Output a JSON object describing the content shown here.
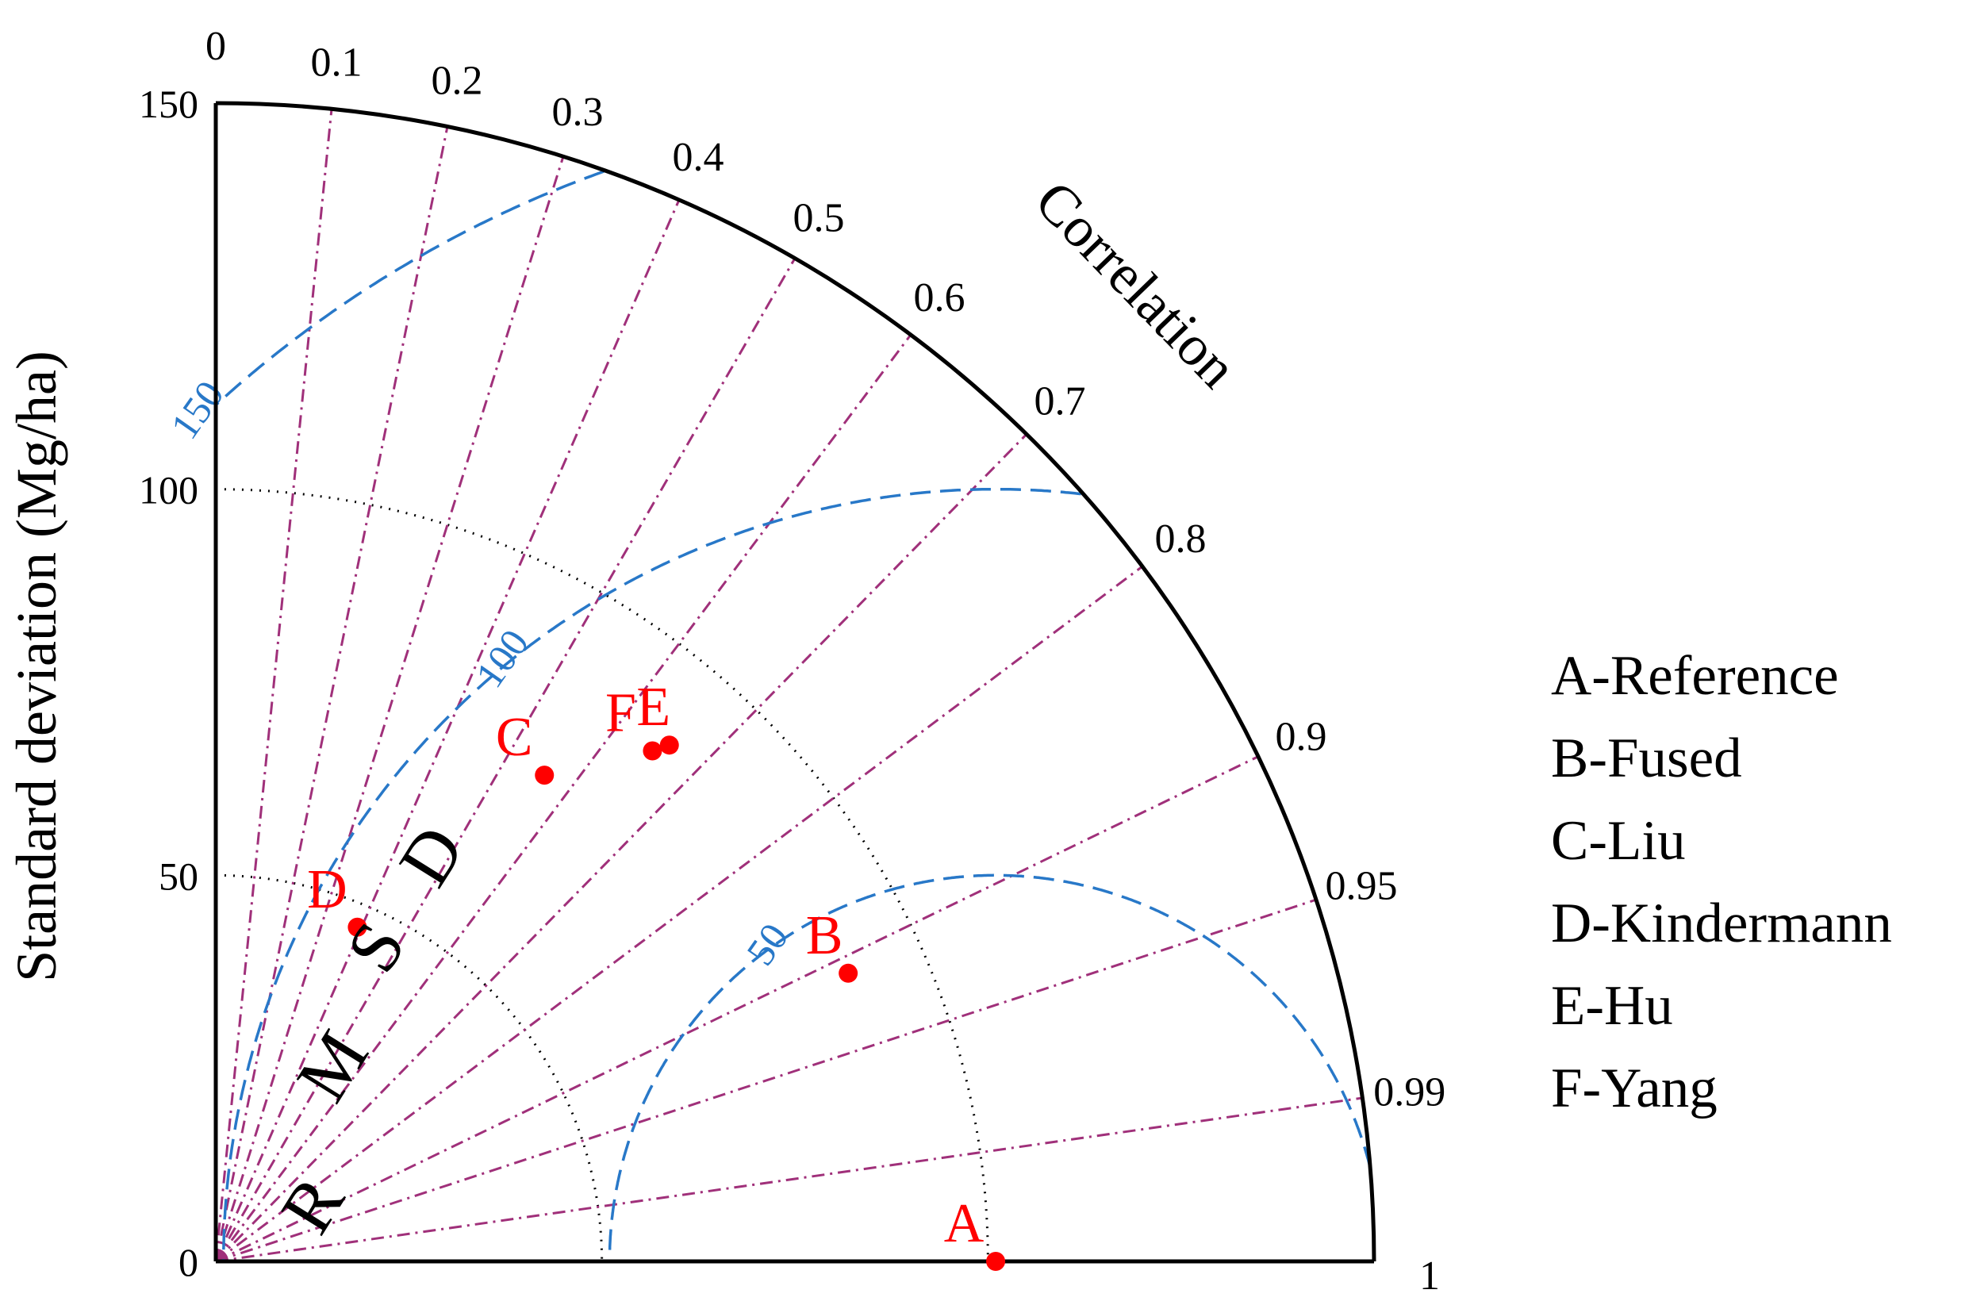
{
  "chart_data": {
    "type": "scatter",
    "subtype": "taylor-diagram",
    "title": "",
    "ylabel": "Standard deviation (Mg/ha)",
    "angular_label": "Correlation",
    "rmsd_label": "RMSD",
    "std_range": [
      0,
      150
    ],
    "std_ticks": [
      "0",
      "50",
      "100",
      "150"
    ],
    "correlation_ticks": [
      0,
      0.1,
      0.2,
      0.3,
      0.4,
      0.5,
      0.6,
      0.7,
      0.8,
      0.9,
      0.95,
      0.99,
      1
    ],
    "correlation_tick_labels": [
      "0",
      "0.1",
      "0.2",
      "0.3",
      "0.4",
      "0.5",
      "0.6",
      "0.7",
      "0.8",
      "0.9",
      "0.95",
      "0.99",
      "1"
    ],
    "reference_std": 101,
    "rmsd_contours": [
      50,
      100,
      150
    ],
    "rmsd_contour_labels": [
      "50",
      "100",
      "150"
    ],
    "std_gridlines": [
      50,
      100
    ],
    "points": [
      {
        "label": "A",
        "std": 101,
        "correlation": 1.0
      },
      {
        "label": "B",
        "std": 90,
        "correlation": 0.91
      },
      {
        "label": "C",
        "std": 76,
        "correlation": 0.56
      },
      {
        "label": "D",
        "std": 47,
        "correlation": 0.39
      },
      {
        "label": "E",
        "std": 89,
        "correlation": 0.66
      },
      {
        "label": "F",
        "std": 87,
        "correlation": 0.65
      }
    ],
    "legend": [
      "A-Reference",
      "B-Fused",
      "C-Liu",
      "D-Kindermann",
      "E-Hu",
      "F-Yang"
    ],
    "legend_position": "right",
    "colors": {
      "points": "#ff0000",
      "correlation_lines": "#a0307a",
      "rmsd_contours": "#2878c8",
      "std_arcs": "#000000"
    }
  }
}
